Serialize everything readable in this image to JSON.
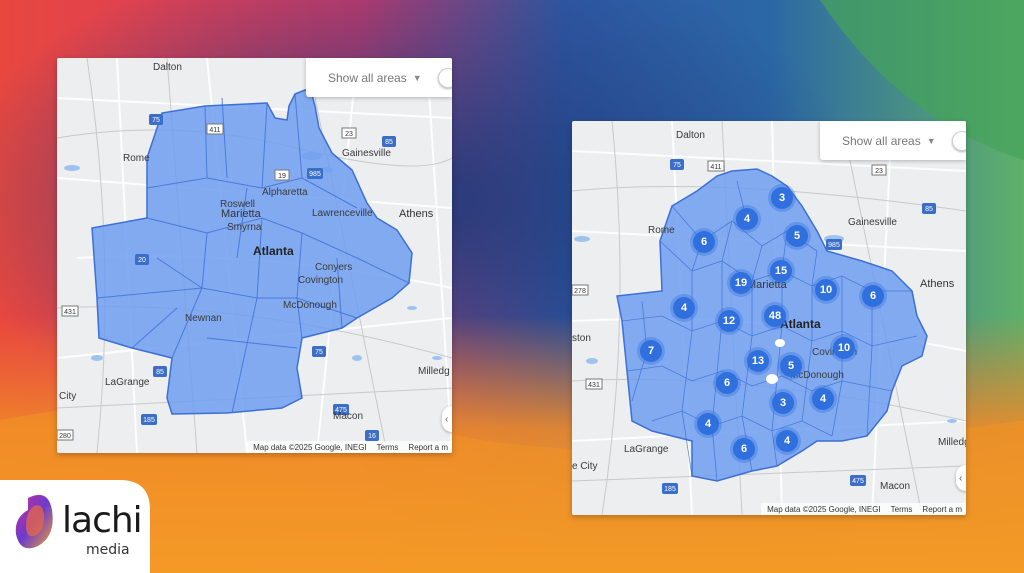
{
  "colors": {
    "area_fill": "#6f9df0",
    "area_stroke": "#3d6fd4",
    "cluster": "#2f6fde"
  },
  "control": {
    "label": "Show all areas"
  },
  "attribution": {
    "map_data": "Map data ©2025 Google, INEGI",
    "terms": "Terms",
    "report": "Report a m"
  },
  "left_map": {
    "cities": {
      "dalton": "Dalton",
      "rome": "Rome",
      "gainesville": "Gainesville",
      "roswell": "Roswell",
      "alpharetta": "Alpharetta",
      "marietta": "Marietta",
      "lawrenceville": "Lawrenceville",
      "smyrna": "Smyrna",
      "athens": "Athens",
      "atlanta": "Atlanta",
      "conyers": "Conyers",
      "covington": "Covington",
      "mcdonough": "McDonough",
      "newnan": "Newnan",
      "milledg": "Milledg",
      "lagrange": "LaGrange",
      "city": "City",
      "macon": "Macon"
    },
    "route_shields": [
      "75",
      "411",
      "23",
      "85",
      "985",
      "20",
      "19",
      "431",
      "85",
      "75",
      "16",
      "185",
      "280",
      "475"
    ]
  },
  "right_map": {
    "cities": {
      "dalton": "Dalton",
      "rome": "Rome",
      "gainesville": "Gainesville",
      "athens": "Athens",
      "ston": "ston",
      "milledg": "Milledg",
      "lagrange": "LaGrange",
      "city": "e City",
      "macon": "Macon",
      "marietta": "Marietta",
      "atlanta": "Atlanta",
      "covington": "Covington",
      "mcdonough": "McDonough"
    },
    "route_shields": [
      "75",
      "411",
      "23",
      "85",
      "985",
      "278",
      "431",
      "185",
      "475"
    ],
    "clusters": [
      "3",
      "4",
      "6",
      "5",
      "15",
      "19",
      "10",
      "6",
      "4",
      "12",
      "48",
      "7",
      "13",
      "5",
      "10",
      "6",
      "3",
      "4",
      "4",
      "6",
      "4"
    ]
  },
  "brand": {
    "name": "lachi",
    "sub": "media"
  }
}
